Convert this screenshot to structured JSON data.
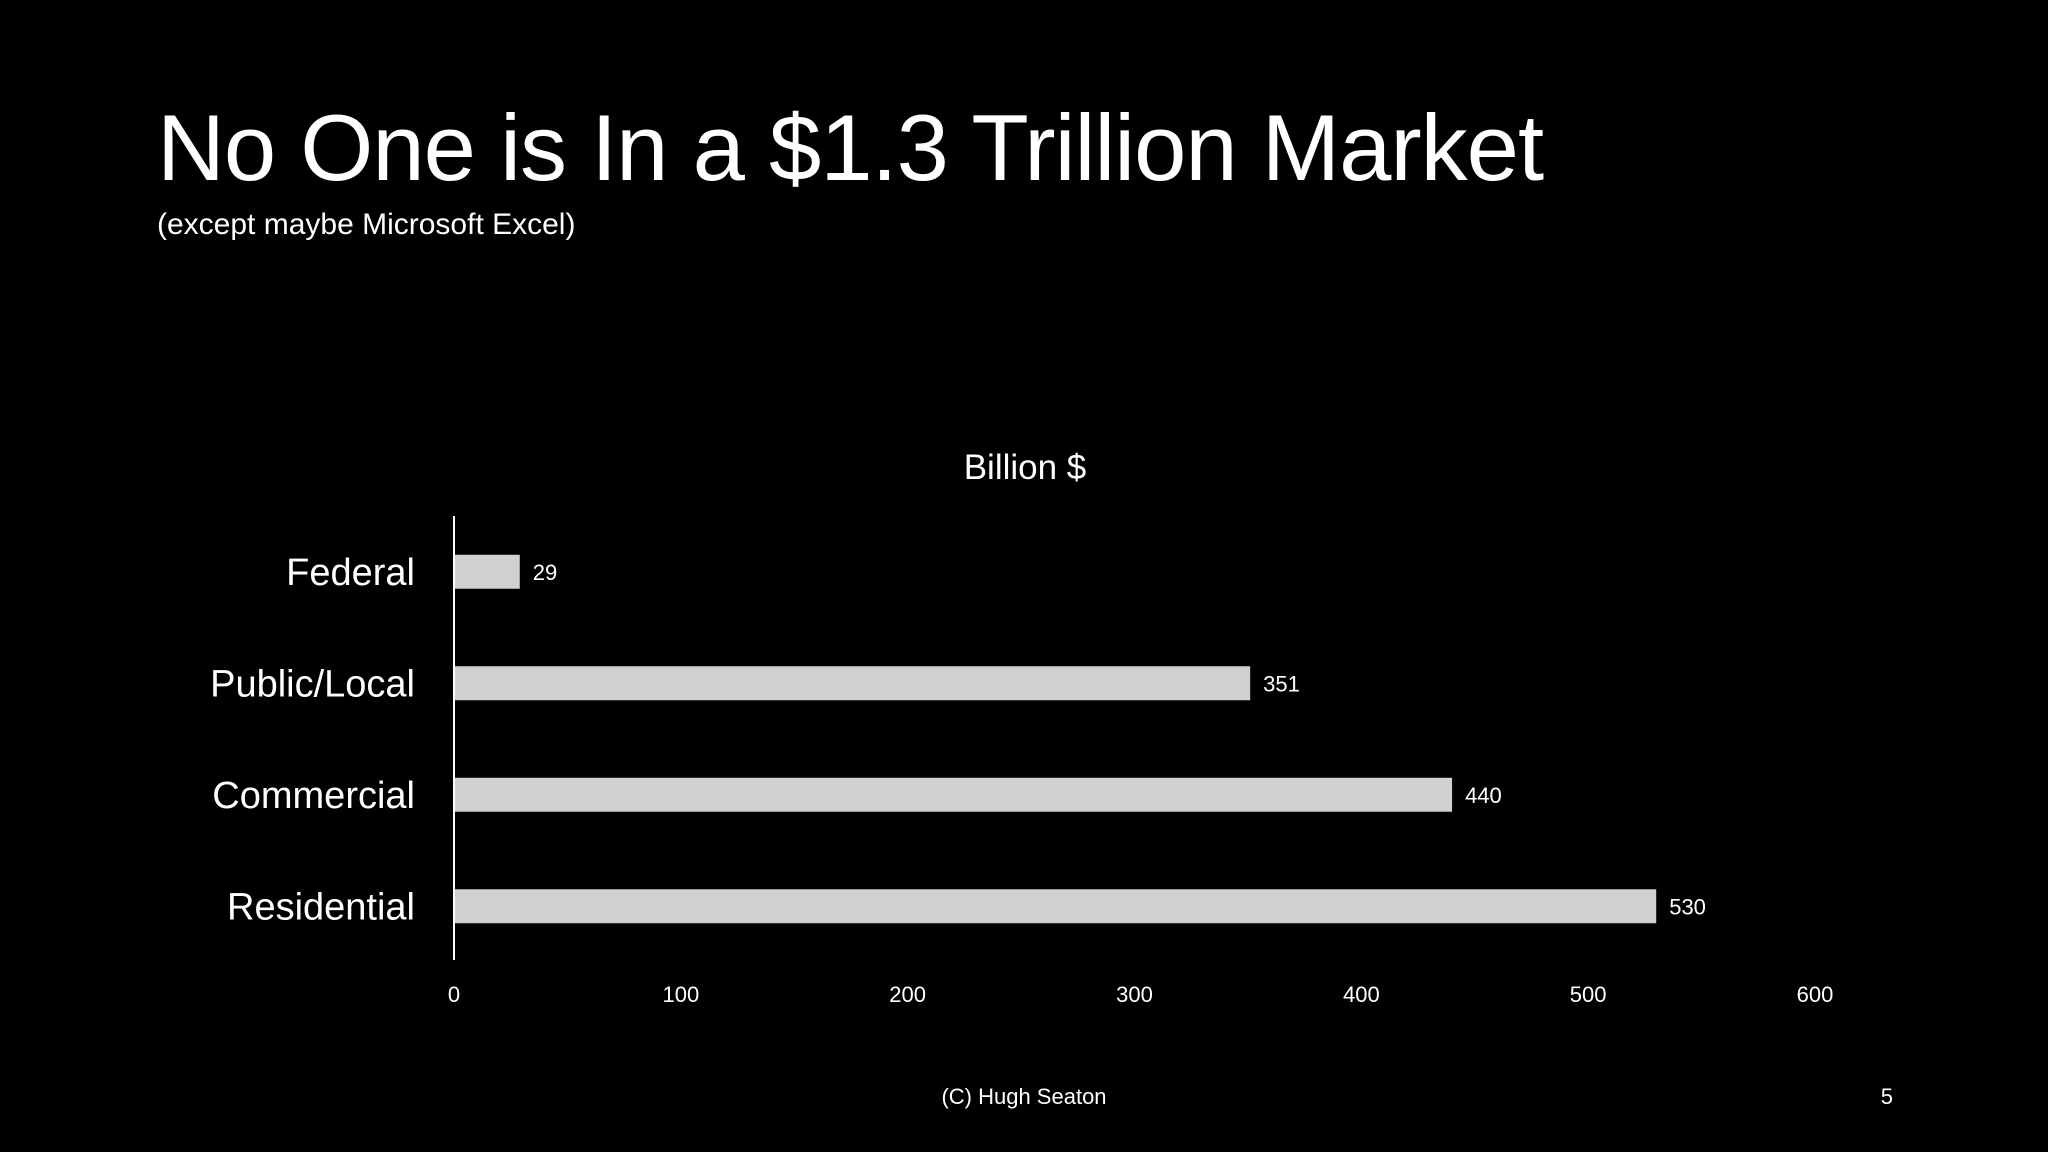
{
  "slide": {
    "title": "No One is In a $1.3 Trillion Market",
    "subtitle": "(except maybe Microsoft Excel)",
    "footer": "(C) Hugh Seaton",
    "page_number": "5"
  },
  "colors": {
    "background": "#000000",
    "text": "#ffffff",
    "bar": "#d0d0d0",
    "axis": "#ffffff"
  },
  "chart_data": {
    "type": "bar",
    "orientation": "horizontal",
    "title": "Billion $",
    "categories": [
      "Federal",
      "Public/Local",
      "Commercial",
      "Residential"
    ],
    "values": [
      29,
      351,
      440,
      530
    ],
    "data_labels": [
      "29",
      "351",
      "440",
      "530"
    ],
    "xlim": [
      0,
      600
    ],
    "x_ticks": [
      0,
      100,
      200,
      300,
      400,
      500,
      600
    ],
    "x_tick_labels": [
      "0",
      "100",
      "200",
      "300",
      "400",
      "500",
      "600"
    ],
    "grid": false,
    "legend": "none"
  }
}
